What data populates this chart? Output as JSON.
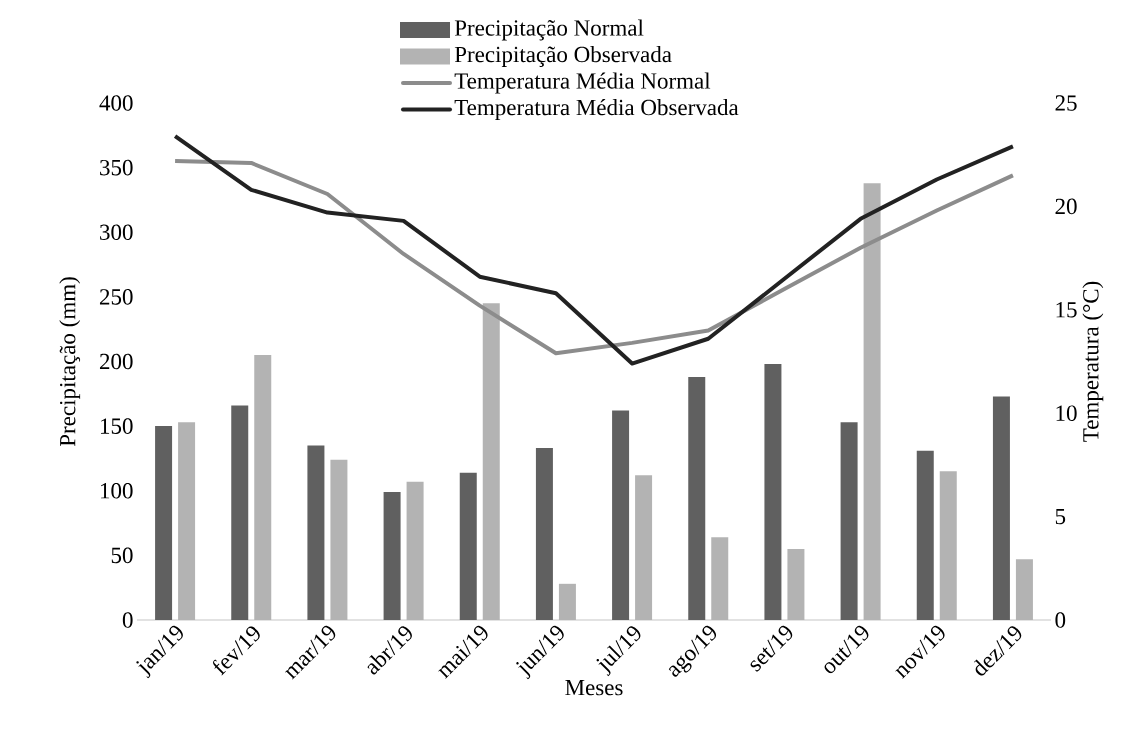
{
  "chart_data": {
    "type": "bar",
    "xlabel": "Meses",
    "ylabel": "Precipitação (mm)",
    "y2label": "Temperatura (°C)",
    "categories": [
      "jan/19",
      "fev/19",
      "mar/19",
      "abr/19",
      "mai/19",
      "jun/19",
      "jul/19",
      "ago/19",
      "set/19",
      "out/19",
      "nov/19",
      "dez/19"
    ],
    "series": [
      {
        "name": "Precipitação Normal",
        "color": "#606060",
        "values": [
          150,
          166,
          135,
          99,
          114,
          133,
          162,
          188,
          198,
          153,
          131,
          173
        ]
      },
      {
        "name": "Precipitação Observada",
        "color": "#b3b3b3",
        "values": [
          153,
          205,
          124,
          107,
          245,
          28,
          112,
          64,
          55,
          338,
          115,
          47
        ]
      },
      {
        "name": "Temperatura Média Normal",
        "type": "line",
        "axis": "y2",
        "color": "#8c8c8c",
        "values": [
          22.2,
          22.1,
          20.6,
          17.7,
          15.2,
          12.9,
          13.4,
          14.0,
          16.0,
          18.0,
          19.8,
          21.5
        ]
      },
      {
        "name": "Temperatura Média Observada",
        "type": "line",
        "axis": "y2",
        "color": "#222222",
        "values": [
          23.4,
          20.8,
          19.7,
          19.3,
          16.6,
          15.8,
          12.4,
          13.6,
          16.5,
          19.4,
          21.3,
          22.9
        ]
      }
    ],
    "ylim": [
      0,
      400
    ],
    "yticks": [
      0,
      50,
      100,
      150,
      200,
      250,
      300,
      350,
      400
    ],
    "y2lim": [
      0,
      25
    ],
    "y2ticks": [
      0,
      5,
      10,
      15,
      20,
      25
    ],
    "legend": "top",
    "line_style": "solid"
  }
}
